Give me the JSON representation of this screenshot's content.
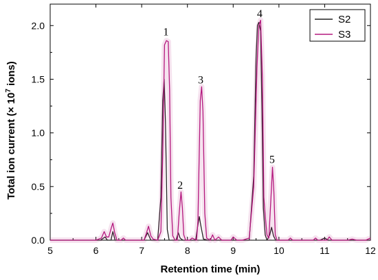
{
  "chart_data": {
    "type": "line",
    "xlabel": "Retention time (min)",
    "ylabel": "Total ion current (× 10",
    "ylabel_sup": "7",
    "ylabel_suffix": " ions)",
    "xlim": [
      5,
      12
    ],
    "ylim": [
      0,
      2.2
    ],
    "x_ticks": [
      "5",
      "6",
      "7",
      "8",
      "9",
      "10",
      "11",
      "12"
    ],
    "y_ticks": [
      "0.0",
      "0.5",
      "1.0",
      "1.5",
      "2.0"
    ],
    "legend_position": "top-right",
    "grid": false,
    "series": [
      {
        "name": "S2",
        "color": "#222222",
        "points": [
          [
            5.0,
            0.0
          ],
          [
            6.1,
            0.0
          ],
          [
            6.2,
            0.03
          ],
          [
            6.25,
            0.0
          ],
          [
            6.33,
            0.0
          ],
          [
            6.37,
            0.08
          ],
          [
            6.42,
            0.0
          ],
          [
            7.05,
            0.0
          ],
          [
            7.13,
            0.07
          ],
          [
            7.2,
            0.0
          ],
          [
            7.35,
            0.0
          ],
          [
            7.42,
            0.4
          ],
          [
            7.46,
            1.3
          ],
          [
            7.49,
            1.5
          ],
          [
            7.52,
            1.1
          ],
          [
            7.56,
            0.1
          ],
          [
            7.6,
            0.0
          ],
          [
            7.75,
            0.0
          ],
          [
            7.8,
            0.07
          ],
          [
            7.84,
            0.02
          ],
          [
            7.9,
            0.0
          ],
          [
            8.18,
            0.0
          ],
          [
            8.22,
            0.12
          ],
          [
            8.26,
            0.22
          ],
          [
            8.3,
            0.12
          ],
          [
            8.35,
            0.01
          ],
          [
            8.45,
            0.0
          ],
          [
            9.35,
            0.0
          ],
          [
            9.45,
            0.6
          ],
          [
            9.5,
            1.7
          ],
          [
            9.53,
            2.0
          ],
          [
            9.56,
            2.03
          ],
          [
            9.6,
            1.95
          ],
          [
            9.63,
            1.2
          ],
          [
            9.66,
            0.3
          ],
          [
            9.7,
            0.05
          ],
          [
            9.74,
            0.0
          ],
          [
            9.8,
            0.05
          ],
          [
            9.84,
            0.12
          ],
          [
            9.88,
            0.04
          ],
          [
            9.93,
            0.0
          ],
          [
            10.9,
            0.0
          ],
          [
            11.0,
            0.02
          ],
          [
            11.08,
            0.0
          ],
          [
            12.0,
            0.0
          ]
        ]
      },
      {
        "name": "S3",
        "color": "#b4187e",
        "points": [
          [
            5.0,
            0.0
          ],
          [
            6.0,
            0.0
          ],
          [
            6.12,
            0.02
          ],
          [
            6.18,
            0.08
          ],
          [
            6.23,
            0.03
          ],
          [
            6.28,
            0.03
          ],
          [
            6.34,
            0.12
          ],
          [
            6.37,
            0.16
          ],
          [
            6.41,
            0.07
          ],
          [
            6.46,
            0.0
          ],
          [
            6.55,
            0.0
          ],
          [
            6.6,
            0.02
          ],
          [
            6.65,
            0.0
          ],
          [
            7.05,
            0.0
          ],
          [
            7.1,
            0.06
          ],
          [
            7.15,
            0.13
          ],
          [
            7.2,
            0.04
          ],
          [
            7.25,
            0.01
          ],
          [
            7.35,
            0.0
          ],
          [
            7.42,
            0.08
          ],
          [
            7.46,
            0.8
          ],
          [
            7.5,
            1.82
          ],
          [
            7.54,
            1.86
          ],
          [
            7.58,
            1.85
          ],
          [
            7.61,
            1.4
          ],
          [
            7.64,
            0.4
          ],
          [
            7.68,
            0.04
          ],
          [
            7.73,
            0.0
          ],
          [
            7.78,
            0.0
          ],
          [
            7.82,
            0.25
          ],
          [
            7.86,
            0.45
          ],
          [
            7.89,
            0.3
          ],
          [
            7.92,
            0.05
          ],
          [
            7.96,
            0.0
          ],
          [
            8.05,
            0.0
          ],
          [
            8.1,
            0.02
          ],
          [
            8.15,
            0.01
          ],
          [
            8.2,
            0.0
          ],
          [
            8.23,
            0.18
          ],
          [
            8.28,
            1.3
          ],
          [
            8.31,
            1.43
          ],
          [
            8.34,
            1.2
          ],
          [
            8.38,
            0.25
          ],
          [
            8.42,
            0.02
          ],
          [
            8.5,
            0.0
          ],
          [
            8.55,
            0.05
          ],
          [
            8.6,
            0.0
          ],
          [
            8.68,
            0.03
          ],
          [
            8.75,
            0.0
          ],
          [
            8.95,
            0.0
          ],
          [
            9.0,
            0.03
          ],
          [
            9.08,
            0.0
          ],
          [
            9.2,
            0.0
          ],
          [
            9.35,
            0.02
          ],
          [
            9.45,
            0.5
          ],
          [
            9.52,
            1.6
          ],
          [
            9.56,
            2.0
          ],
          [
            9.6,
            2.05
          ],
          [
            9.64,
            1.5
          ],
          [
            9.67,
            0.4
          ],
          [
            9.7,
            0.23
          ],
          [
            9.74,
            0.05
          ],
          [
            9.78,
            0.02
          ],
          [
            9.82,
            0.35
          ],
          [
            9.86,
            0.68
          ],
          [
            9.89,
            0.45
          ],
          [
            9.92,
            0.05
          ],
          [
            9.96,
            0.0
          ],
          [
            10.2,
            0.0
          ],
          [
            10.25,
            0.02
          ],
          [
            10.3,
            0.0
          ],
          [
            10.75,
            0.0
          ],
          [
            10.8,
            0.02
          ],
          [
            10.85,
            0.0
          ],
          [
            11.05,
            0.0
          ],
          [
            11.1,
            0.03
          ],
          [
            11.16,
            0.0
          ],
          [
            11.5,
            0.0
          ],
          [
            11.6,
            0.01
          ],
          [
            11.7,
            0.0
          ],
          [
            11.9,
            0.0
          ],
          [
            12.0,
            0.02
          ]
        ]
      }
    ],
    "annotations": [
      {
        "text": "1",
        "x": 7.53,
        "y": 1.91
      },
      {
        "text": "2",
        "x": 7.84,
        "y": 0.48
      },
      {
        "text": "3",
        "x": 8.29,
        "y": 1.46
      },
      {
        "text": "4",
        "x": 9.58,
        "y": 2.08
      },
      {
        "text": "5",
        "x": 9.85,
        "y": 0.72
      }
    ]
  }
}
